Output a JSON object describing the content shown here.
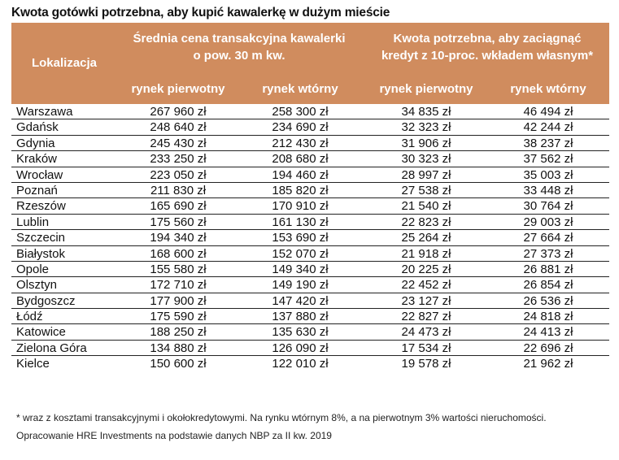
{
  "title": "Kwota gotówki potrzebna, aby kupić kawalerkę w dużym mieście",
  "header": {
    "location": "Lokalizacja",
    "group1_line1": "Średnia cena transakcyjna kawalerki",
    "group1_line2": "o pow. 30 m kw.",
    "group2_line1": "Kwota potrzebna, aby zaciągnąć",
    "group2_line2": "kredyt z 10-proc. wkładem własnym*",
    "sub": [
      "rynek pierwotny",
      "rynek wtórny",
      "rynek pierwotny",
      "rynek wtórny"
    ]
  },
  "header_color": "#d08c5e",
  "rows": [
    [
      "Warszawa",
      "267 960 zł",
      "258 300 zł",
      "34 835 zł",
      "46 494 zł"
    ],
    [
      "Gdańsk",
      "248 640 zł",
      "234 690 zł",
      "32 323 zł",
      "42 244 zł"
    ],
    [
      "Gdynia",
      "245 430 zł",
      "212 430 zł",
      "31 906 zł",
      "38 237 zł"
    ],
    [
      "Kraków",
      "233 250 zł",
      "208 680 zł",
      "30 323 zł",
      "37 562 zł"
    ],
    [
      "Wrocław",
      "223 050 zł",
      "194 460 zł",
      "28 997 zł",
      "35 003 zł"
    ],
    [
      "Poznań",
      "211 830 zł",
      "185 820 zł",
      "27 538 zł",
      "33 448 zł"
    ],
    [
      "Rzeszów",
      "165 690 zł",
      "170 910 zł",
      "21 540 zł",
      "30 764 zł"
    ],
    [
      "Lublin",
      "175 560 zł",
      "161 130 zł",
      "22 823 zł",
      "29 003 zł"
    ],
    [
      "Szczecin",
      "194 340 zł",
      "153 690 zł",
      "25 264 zł",
      "27 664 zł"
    ],
    [
      "Białystok",
      "168 600 zł",
      "152 070 zł",
      "21 918 zł",
      "27 373 zł"
    ],
    [
      "Opole",
      "155 580 zł",
      "149 340 zł",
      "20 225 zł",
      "26 881 zł"
    ],
    [
      "Olsztyn",
      "172 710 zł",
      "149 190 zł",
      "22 452 zł",
      "26 854 zł"
    ],
    [
      "Bydgoszcz",
      "177 900 zł",
      "147 420 zł",
      "23 127 zł",
      "26 536 zł"
    ],
    [
      "Łódź",
      "175 590 zł",
      "137 880 zł",
      "22 827 zł",
      "24 818 zł"
    ],
    [
      "Katowice",
      "188 250 zł",
      "135 630 zł",
      "24 473 zł",
      "24 413 zł"
    ],
    [
      "Zielona Góra",
      "134 880 zł",
      "126 090 zł",
      "17 534 zł",
      "22 696 zł"
    ],
    [
      "Kielce",
      "150 600 zł",
      "122 010 zł",
      "19 578 zł",
      "21 962 zł"
    ]
  ],
  "footnote": "* wraz z kosztami transakcyjnymi i okołokredytowymi. Na rynku wtórnym 8%, a na pierwotnym 3% wartości nieruchomości.",
  "source": "Opracowanie HRE Investments na podstawie danych NBP za II kw. 2019"
}
